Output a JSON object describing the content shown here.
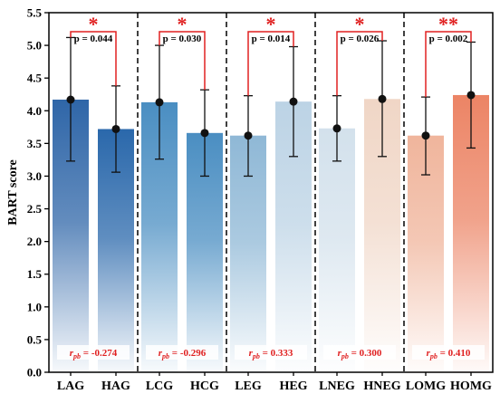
{
  "chart_data": {
    "type": "bar",
    "title": "",
    "xlabel": "",
    "ylabel": "BART score",
    "ylim": [
      0.0,
      5.5
    ],
    "yticks": [
      "0.0",
      "0.5",
      "1.0",
      "1.5",
      "2.0",
      "2.5",
      "3.0",
      "3.5",
      "4.0",
      "4.5",
      "5.0",
      "5.5"
    ],
    "categories": [
      "LAG",
      "HAG",
      "LCG",
      "HCG",
      "LEG",
      "HEG",
      "LNEG",
      "HNEG",
      "LOMG",
      "HOMG"
    ],
    "values": [
      4.17,
      3.72,
      4.13,
      3.66,
      3.62,
      4.14,
      3.73,
      4.18,
      3.62,
      4.24
    ],
    "error_low": [
      3.23,
      3.06,
      3.26,
      3.0,
      3.0,
      3.3,
      3.23,
      3.3,
      3.02,
      3.43
    ],
    "error_high": [
      5.12,
      4.38,
      5.0,
      4.32,
      4.23,
      4.98,
      4.23,
      5.07,
      4.21,
      5.05
    ],
    "bar_colors": [
      "#2f66a8",
      "#2a68ab",
      "#4a8ec2",
      "#4a8ec2",
      "#8fb8d6",
      "#bcd3e5",
      "#d3e1ec",
      "#f0d6c6",
      "#f0b59c",
      "#ec8465"
    ],
    "groups": [
      {
        "p_label": "p = 0.044",
        "stars": "*",
        "rpb_label": "r",
        "rpb_sub": "pb",
        "rpb_value": " = -0.274"
      },
      {
        "p_label": "p = 0.030",
        "stars": "*",
        "rpb_label": "r",
        "rpb_sub": "pb",
        "rpb_value": " = -0.296"
      },
      {
        "p_label": "p = 0.014",
        "stars": "*",
        "rpb_label": "r",
        "rpb_sub": "pb",
        "rpb_value": " = 0.333"
      },
      {
        "p_label": "p = 0.026",
        "stars": "*",
        "rpb_label": "r",
        "rpb_sub": "pb",
        "rpb_value": " = 0.300"
      },
      {
        "p_label": "p = 0.002",
        "stars": "**",
        "rpb_label": "r",
        "rpb_sub": "pb",
        "rpb_value": " = 0.410"
      }
    ],
    "grid": false,
    "annotation_color": "#e02020"
  }
}
